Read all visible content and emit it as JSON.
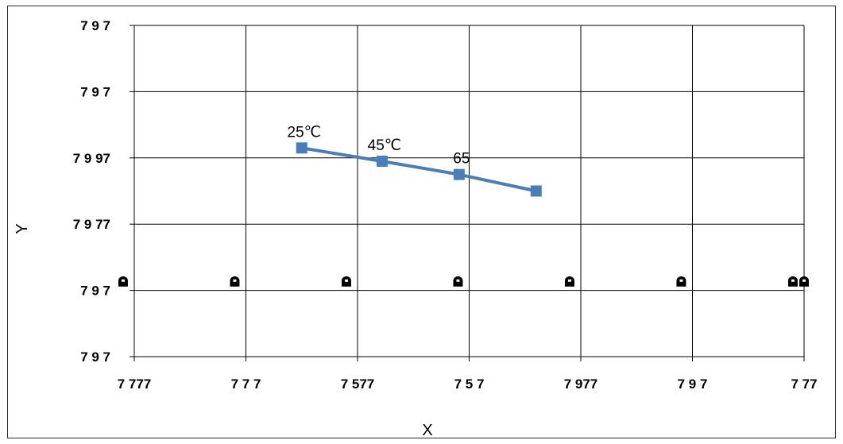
{
  "chart_data": {
    "type": "line",
    "xlabel": "X",
    "ylabel": "Y",
    "x_tick_labels": [
      "7 777",
      "7 7 7",
      "7 577",
      "7 5 7",
      "7 977",
      "7 9 7",
      "7 77"
    ],
    "y_tick_labels": [
      "7 9 7",
      "7 9 7",
      "7 9 97",
      "7 9 77",
      "7 9 7",
      "7 9 7"
    ],
    "xlim": [
      0,
      6
    ],
    "ylim": [
      0,
      5
    ],
    "grid": true,
    "legend": "none",
    "series": [
      {
        "color": "#4a7ebb",
        "marker": "square",
        "points": [
          {
            "x": 1.5,
            "y": 3.15,
            "label": "25℃"
          },
          {
            "x": 2.22,
            "y": 2.95,
            "label": "45℃"
          },
          {
            "x": 2.91,
            "y": 2.75,
            "label": "65"
          },
          {
            "x": 3.6,
            "y": 2.5,
            "label": ""
          }
        ]
      }
    ],
    "markers_row": {
      "y": 1.13,
      "x": [
        -0.1,
        0.9,
        1.9,
        2.9,
        3.9,
        4.9,
        5.9,
        6.0
      ],
      "symbol": "black-blob"
    }
  }
}
